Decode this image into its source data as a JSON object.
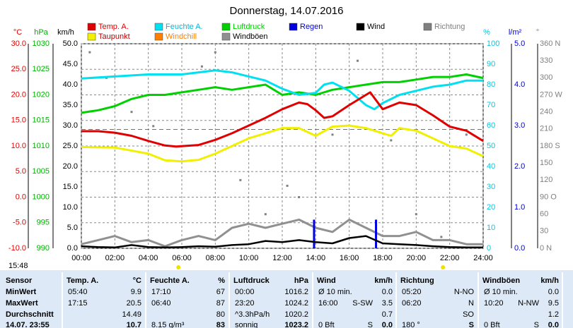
{
  "chart_data": {
    "type": "line",
    "title": "Donnerstag, 14.07.2016",
    "time_label": "15:48",
    "xlim": [
      0,
      24
    ],
    "xticks": [
      {
        "value": 0,
        "label": "00:00"
      },
      {
        "value": 2,
        "label": "02:00"
      },
      {
        "value": 4,
        "label": "04:00"
      },
      {
        "value": 6,
        "label": "06:00"
      },
      {
        "value": 8,
        "label": "08:00"
      },
      {
        "value": 10,
        "label": "10:00"
      },
      {
        "value": 12,
        "label": "12:00"
      },
      {
        "value": 14,
        "label": "14:00"
      },
      {
        "value": 16,
        "label": "16:00"
      },
      {
        "value": 18,
        "label": "18:00"
      },
      {
        "value": 20,
        "label": "20:00"
      },
      {
        "value": 22,
        "label": "22:00"
      },
      {
        "value": 24,
        "label": "24:00"
      }
    ],
    "grid": true,
    "pressure_reference": 1013.25,
    "sun_markers": [
      5.8,
      21.6
    ],
    "axes": [
      {
        "label": "°C",
        "color": "#e00000",
        "lim": [
          -10,
          30
        ],
        "ticks": [
          {
            "value": 30,
            "label": "30.0"
          },
          {
            "value": 25,
            "label": "25.0"
          },
          {
            "value": 20,
            "label": "20.0"
          },
          {
            "value": 15,
            "label": "15.0"
          },
          {
            "value": 10,
            "label": "10.0"
          },
          {
            "value": 5,
            "label": "5.0"
          },
          {
            "value": 0,
            "label": "0.0"
          },
          {
            "value": -5,
            "label": "-5.0"
          },
          {
            "value": -10,
            "label": "-10.0"
          }
        ]
      },
      {
        "label": "hPa",
        "color": "#00b000",
        "lim": [
          990,
          1030
        ],
        "ticks": [
          1030,
          1025,
          1020,
          1015,
          1010,
          1005,
          1000,
          995,
          990
        ]
      },
      {
        "label": "km/h",
        "color": "#000000",
        "lim": [
          0,
          50
        ],
        "ticks": [
          {
            "value": 50,
            "label": "50.0"
          },
          {
            "value": 45,
            "label": "45.0"
          },
          {
            "value": 40,
            "label": "40.0"
          },
          {
            "value": 35,
            "label": "35.0"
          },
          {
            "value": 30,
            "label": "30.0"
          },
          {
            "value": 25,
            "label": "25.0"
          },
          {
            "value": 20,
            "label": "20.0"
          },
          {
            "value": 15,
            "label": "15.0"
          },
          {
            "value": 10,
            "label": "10.0"
          },
          {
            "value": 5,
            "label": "5.0"
          },
          {
            "value": 0,
            "label": "0.0"
          }
        ]
      },
      {
        "label": "%",
        "color": "#00c8e0",
        "lim": [
          0,
          100
        ],
        "ticks": [
          100,
          90,
          80,
          70,
          60,
          50,
          40,
          30,
          20,
          10,
          0
        ]
      },
      {
        "label": "l/m²",
        "color": "#0000d0",
        "lim": [
          0,
          5
        ],
        "ticks": [
          {
            "value": 5,
            "label": "5.0"
          },
          {
            "value": 4,
            "label": "4.0"
          },
          {
            "value": 3,
            "label": "3.0"
          },
          {
            "value": 2,
            "label": "2.0"
          },
          {
            "value": 1,
            "label": "1.0"
          },
          {
            "value": 0,
            "label": "0.0"
          }
        ]
      },
      {
        "label": "°",
        "color": "#808080",
        "lim": [
          0,
          360
        ],
        "ticks": [
          {
            "value": 360,
            "label": "360 N"
          },
          330,
          300,
          {
            "value": 270,
            "label": "270 W"
          },
          240,
          210,
          {
            "value": 180,
            "label": "180 S"
          },
          150,
          120,
          {
            "value": 90,
            "label": "90 O"
          },
          60,
          30,
          {
            "value": 0,
            "label": "0 N"
          }
        ]
      }
    ],
    "series": [
      {
        "name": "Temp. A.",
        "color": "#e00000",
        "kind": "line",
        "axis": 0,
        "x": [
          0,
          1,
          2,
          3,
          4,
          5,
          5.67,
          7,
          8,
          9,
          10,
          11,
          12,
          13,
          13.5,
          14,
          14.5,
          15,
          16,
          17,
          17.25,
          18,
          19,
          20,
          21,
          22,
          23,
          24
        ],
        "values": [
          12.9,
          12.9,
          12.6,
          12.0,
          11.0,
          10.1,
          9.9,
          10.2,
          11.2,
          12.5,
          14.0,
          15.5,
          17.2,
          18.5,
          18.2,
          17.0,
          15.5,
          15.8,
          18.0,
          20.0,
          20.5,
          17.2,
          18.5,
          18.0,
          16.0,
          13.8,
          13.0,
          11.0
        ]
      },
      {
        "name": "Feuchte A.",
        "color": "#00e0f0",
        "kind": "line",
        "axis": 3,
        "x": [
          0,
          2,
          4,
          6,
          7,
          8,
          9,
          10,
          11,
          12,
          13,
          14,
          14.5,
          15,
          16,
          17,
          17.5,
          18,
          19,
          20,
          21,
          22,
          23,
          24
        ],
        "values": [
          83,
          84,
          85,
          85,
          86,
          87,
          86,
          84,
          82,
          78,
          75,
          76,
          80,
          81,
          77,
          70,
          68,
          71,
          75,
          77,
          79,
          80,
          82,
          82
        ]
      },
      {
        "name": "Luftdruck",
        "color": "#00d000",
        "kind": "line",
        "axis": 1,
        "x": [
          0,
          1,
          2,
          3,
          4,
          5,
          6,
          7,
          8,
          9,
          10,
          11,
          12,
          13,
          14,
          15,
          16,
          17,
          18,
          19,
          20,
          21,
          22,
          23,
          24
        ],
        "values": [
          1016.5,
          1017,
          1017.8,
          1019.2,
          1020,
          1020,
          1020.5,
          1021,
          1021.5,
          1021,
          1021.5,
          1022,
          1020,
          1020.5,
          1020,
          1021,
          1021.5,
          1022,
          1022.5,
          1022.5,
          1023,
          1023.5,
          1023.5,
          1024,
          1023.3
        ]
      },
      {
        "name": "Regen",
        "color": "#0000e0",
        "kind": "bar",
        "axis": 4,
        "x": [
          13.9,
          17.6
        ],
        "values": [
          0.7,
          0.7
        ]
      },
      {
        "name": "Wind",
        "color": "#000000",
        "kind": "line",
        "axis": 2,
        "x": [
          0,
          1,
          2,
          3,
          4,
          5,
          6,
          7,
          8,
          9,
          10,
          11,
          12,
          13,
          14,
          15,
          16,
          17,
          18,
          19,
          20,
          21,
          22,
          23,
          24
        ],
        "values": [
          0.5,
          0.3,
          0.2,
          0.8,
          0.3,
          0.2,
          0.3,
          0.5,
          0.4,
          0.8,
          1,
          1.8,
          1.5,
          2,
          1.5,
          1.2,
          2.5,
          3,
          1.2,
          1,
          0.8,
          0.5,
          0.3,
          0.2,
          0.2
        ]
      },
      {
        "name": "Richtung",
        "color": "#808080",
        "kind": "dots",
        "axis": 5,
        "x": [
          0.5,
          1.5,
          3,
          4.3,
          7.2,
          8,
          9.5,
          11,
          12.3,
          13,
          15,
          16.5,
          18.5,
          20,
          21.5,
          23
        ],
        "values": [
          345,
          300,
          240,
          215,
          320,
          345,
          120,
          60,
          110,
          90,
          200,
          330,
          190,
          60,
          20,
          200
        ]
      },
      {
        "name": "Taupunkt",
        "color": "#f0f000",
        "kind": "line",
        "axis": 0,
        "x": [
          0,
          2,
          4,
          5,
          6,
          7,
          8,
          9,
          10,
          11,
          12,
          13,
          14,
          15,
          16,
          17,
          18,
          18.5,
          19,
          20,
          21,
          22,
          23,
          24
        ],
        "values": [
          9.8,
          9.7,
          8.5,
          7.2,
          7.0,
          7.3,
          8.5,
          10.0,
          11.5,
          12.5,
          13.5,
          13.5,
          12.0,
          13.8,
          14.0,
          13.5,
          12.5,
          12.0,
          13.5,
          13.0,
          11.5,
          10.0,
          9.5,
          8.0
        ]
      },
      {
        "name": "Windchill",
        "color": "#ff8000",
        "kind": "none",
        "axis": 0
      },
      {
        "name": "Windböen",
        "color": "#909090",
        "kind": "line",
        "axis": 2,
        "x": [
          0,
          1,
          2,
          3,
          4,
          5,
          6,
          7,
          8,
          9,
          10,
          11,
          12,
          13,
          14,
          15,
          16,
          17,
          18,
          19,
          20,
          21,
          22,
          23,
          24
        ],
        "values": [
          1,
          2,
          3,
          1.5,
          2,
          0.5,
          2,
          3,
          2,
          5,
          6,
          5,
          6,
          7,
          5,
          4,
          7,
          5,
          3,
          3,
          4,
          2,
          2,
          1,
          1
        ]
      }
    ]
  },
  "table": {
    "header": [
      [
        "Sensor"
      ],
      [
        "Temp. A.",
        "°C"
      ],
      [
        "Feuchte A.",
        "%"
      ],
      [
        "Luftdruck",
        "hPa"
      ],
      [
        "Wind",
        "km/h"
      ],
      [
        "Richtung"
      ],
      [
        "Windböen",
        "km/h"
      ]
    ],
    "rows": [
      {
        "label": "MinWert",
        "cells": [
          [
            "05:40",
            "9.9"
          ],
          [
            "17:10",
            "67"
          ],
          [
            "00:00",
            "1016.2"
          ],
          [
            "Ø 10 min.",
            "0.0"
          ],
          [
            "05:20",
            "N-NO"
          ],
          [
            "Ø 10 min.",
            "0.0"
          ]
        ]
      },
      {
        "label": "MaxWert",
        "cells": [
          [
            "17:15",
            "20.5"
          ],
          [
            "06:40",
            "87"
          ],
          [
            "23:20",
            "1024.2"
          ],
          [
            "16:00",
            "S-SW",
            "3.5"
          ],
          [
            "06:20",
            "N"
          ],
          [
            "10:20",
            "N-NW",
            "9.5"
          ]
        ]
      },
      {
        "label": "Durchschnitt",
        "cells": [
          [
            "14.49"
          ],
          [
            "80"
          ],
          [
            "^3.3hPa/h",
            "1020.2"
          ],
          [
            "0.7"
          ],
          [
            "SO"
          ],
          [
            "1.2"
          ]
        ]
      },
      {
        "label": "14.07. 23:55",
        "cells": [
          [
            "10.7"
          ],
          [
            "8.15 g/m³",
            "83"
          ],
          [
            "sonnig",
            "1023.2"
          ],
          [
            "0 Bft",
            "S",
            "0.0"
          ],
          [
            "180 °",
            "S"
          ],
          [
            "0 Bft",
            "S",
            "0.0"
          ]
        ]
      }
    ]
  }
}
